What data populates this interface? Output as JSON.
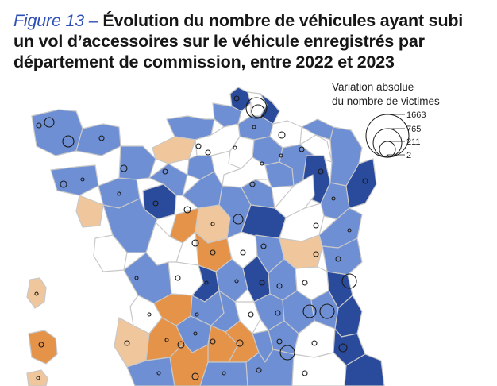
{
  "title": {
    "figure_label": "Figure 13 –",
    "text": "Évolution du nombre de véhicules ayant subi un vol d’accessoires sur le véhicule enregistrés par département de commission, entre 2022 et 2023"
  },
  "legend": {
    "title_line1": "Variation absolue",
    "title_line2": "du nombre de victimes",
    "values": [
      "1663",
      "765",
      "211",
      "2"
    ]
  },
  "colors": {
    "strong_increase": "#2a4a9b",
    "moderate_increase": "#6f8fd4",
    "stable": "#ffffff",
    "moderate_decrease": "#f0c69c",
    "strong_decrease": "#e6934a",
    "border": "#c8c8c8",
    "circle": "#1a1a1a"
  }
}
